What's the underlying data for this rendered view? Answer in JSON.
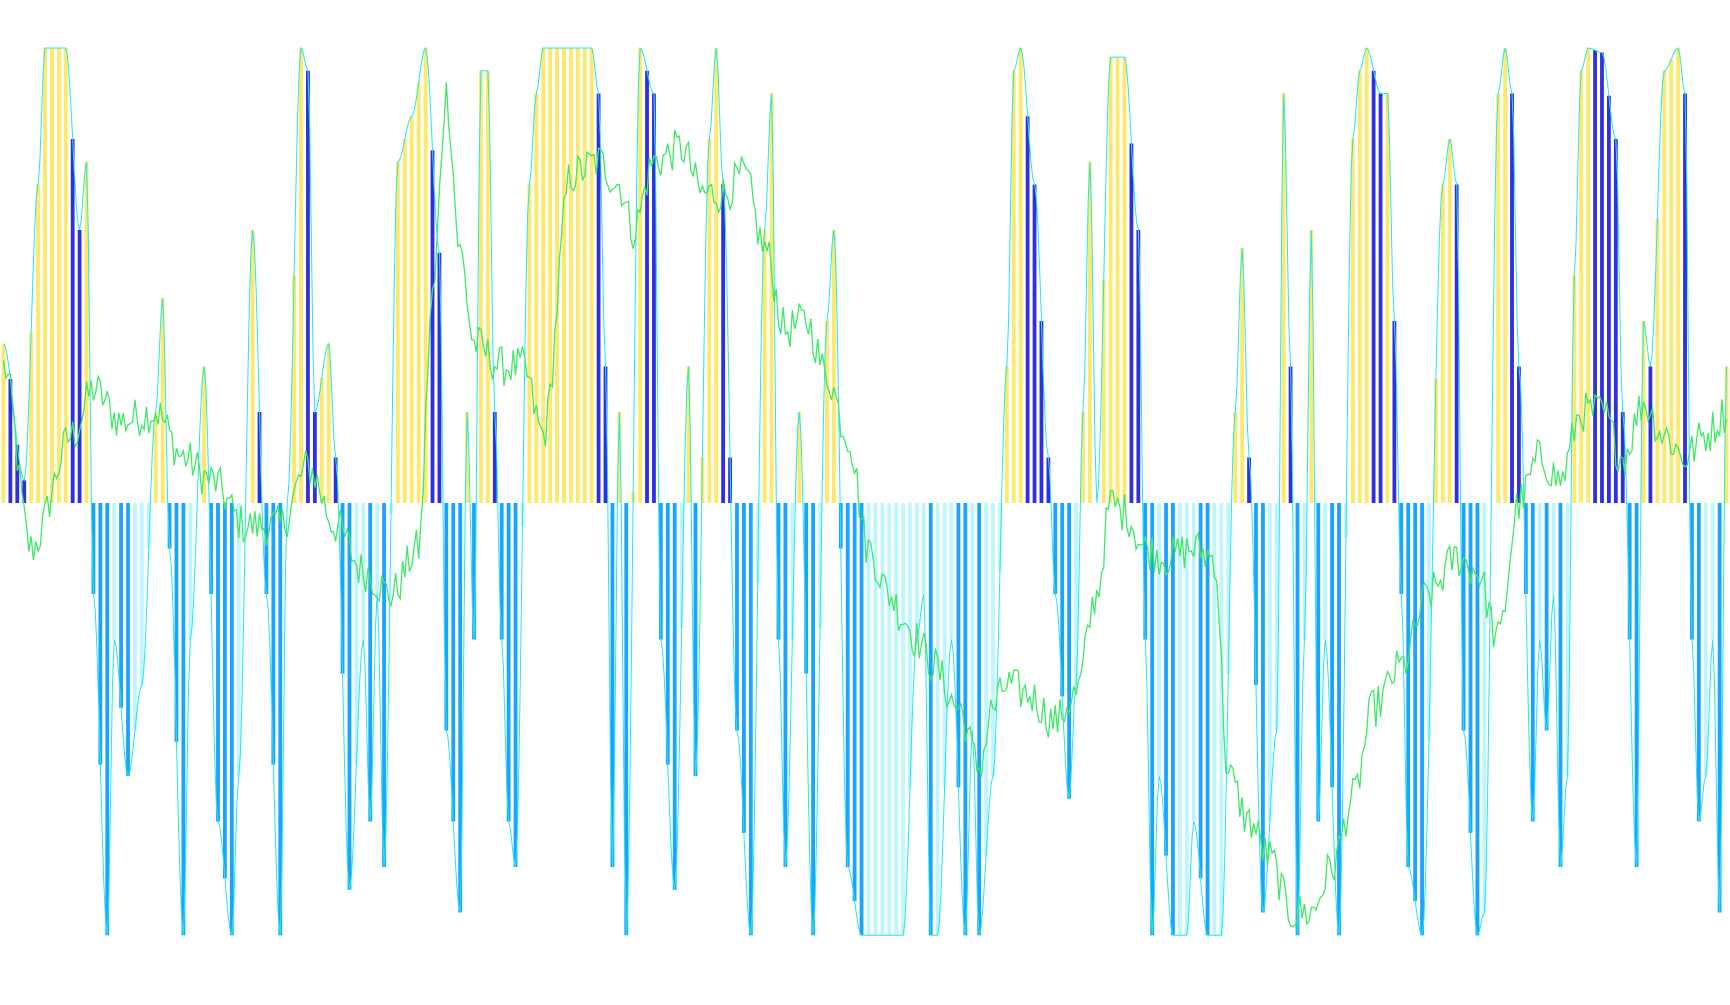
{
  "chart_data": {
    "type": "bar",
    "grid": false,
    "legend": "none",
    "ylim": [
      -1,
      1
    ],
    "n_bars": 250,
    "colors": {
      "positive_strong": "#2f2fe0",
      "positive_weak": "#ffe96a",
      "negative_strong": "#1aa3ff",
      "negative_weak": "#bdf6ff",
      "envelope": "#23e6f0",
      "price": "#3fe865"
    },
    "envelope_keypoints": [
      [
        0,
        0.35
      ],
      [
        3,
        0.05
      ],
      [
        5,
        0.7
      ],
      [
        6,
        1.0
      ],
      [
        9,
        1.0
      ],
      [
        11,
        0.6
      ],
      [
        12,
        0.75
      ],
      [
        13,
        -0.2
      ],
      [
        15,
        -0.95
      ],
      [
        16,
        -0.3
      ],
      [
        18,
        -0.6
      ],
      [
        20,
        -0.4
      ],
      [
        22,
        0.2
      ],
      [
        23,
        0.45
      ],
      [
        24,
        -0.1
      ],
      [
        26,
        -0.95
      ],
      [
        27,
        -0.3
      ],
      [
        29,
        0.3
      ],
      [
        31,
        -0.7
      ],
      [
        33,
        -0.95
      ],
      [
        34,
        -0.6
      ],
      [
        36,
        0.6
      ],
      [
        38,
        -0.2
      ],
      [
        40,
        -0.95
      ],
      [
        41,
        0.0
      ],
      [
        43,
        1.0
      ],
      [
        44,
        0.95
      ],
      [
        45,
        0.2
      ],
      [
        47,
        0.35
      ],
      [
        48,
        0.1
      ],
      [
        50,
        -0.85
      ],
      [
        52,
        -0.3
      ],
      [
        53,
        -0.7
      ],
      [
        54,
        -0.2
      ],
      [
        55,
        -0.8
      ],
      [
        57,
        0.75
      ],
      [
        59,
        0.85
      ],
      [
        61,
        1.0
      ],
      [
        63,
        0.55
      ],
      [
        64,
        -0.5
      ],
      [
        66,
        -0.9
      ],
      [
        67,
        0.2
      ],
      [
        68,
        -0.3
      ],
      [
        69,
        0.95
      ],
      [
        70,
        0.95
      ],
      [
        71,
        0.2
      ],
      [
        72,
        -0.3
      ],
      [
        73,
        -0.7
      ],
      [
        74,
        -0.8
      ],
      [
        76,
        0.7
      ],
      [
        77,
        0.9
      ],
      [
        78,
        1.0
      ],
      [
        85,
        1.0
      ],
      [
        86,
        0.9
      ],
      [
        87,
        0.3
      ],
      [
        88,
        -0.8
      ],
      [
        89,
        0.2
      ],
      [
        90,
        -0.95
      ],
      [
        92,
        1.0
      ],
      [
        94,
        0.9
      ],
      [
        95,
        -0.3
      ],
      [
        97,
        -0.85
      ],
      [
        99,
        0.3
      ],
      [
        100,
        -0.6
      ],
      [
        102,
        0.8
      ],
      [
        103,
        1.0
      ],
      [
        104,
        0.7
      ],
      [
        106,
        -0.5
      ],
      [
        108,
        -0.95
      ],
      [
        110,
        0.6
      ],
      [
        111,
        0.9
      ],
      [
        112,
        -0.3
      ],
      [
        113,
        -0.8
      ],
      [
        115,
        0.2
      ],
      [
        117,
        -0.95
      ],
      [
        119,
        0.4
      ],
      [
        120,
        0.6
      ],
      [
        122,
        -0.8
      ],
      [
        124,
        -0.95
      ],
      [
        126,
        -0.95
      ],
      [
        130,
        -0.95
      ],
      [
        132,
        -0.3
      ],
      [
        133,
        -0.2
      ],
      [
        134,
        -0.95
      ],
      [
        135,
        -0.95
      ],
      [
        137,
        -0.3
      ],
      [
        139,
        -0.95
      ],
      [
        140,
        -0.5
      ],
      [
        141,
        -0.95
      ],
      [
        143,
        -0.6
      ],
      [
        145,
        0.3
      ],
      [
        146,
        0.95
      ],
      [
        147,
        1.0
      ],
      [
        149,
        0.7
      ],
      [
        151,
        0.1
      ],
      [
        152,
        -0.2
      ],
      [
        154,
        -0.65
      ],
      [
        155,
        -0.4
      ],
      [
        156,
        0.2
      ],
      [
        157,
        0.75
      ],
      [
        158,
        0.0
      ],
      [
        160,
        0.98
      ],
      [
        162,
        0.98
      ],
      [
        164,
        0.6
      ],
      [
        165,
        -0.3
      ],
      [
        166,
        -0.95
      ],
      [
        167,
        -0.6
      ],
      [
        169,
        -0.95
      ],
      [
        171,
        -0.95
      ],
      [
        172,
        -0.7
      ],
      [
        174,
        -0.95
      ],
      [
        176,
        -0.95
      ],
      [
        178,
        0.2
      ],
      [
        179,
        0.56
      ],
      [
        180,
        0.1
      ],
      [
        182,
        -0.9
      ],
      [
        184,
        -0.5
      ],
      [
        185,
        0.9
      ],
      [
        186,
        0.3
      ],
      [
        187,
        -0.95
      ],
      [
        188,
        -0.3
      ],
      [
        189,
        0.6
      ],
      [
        190,
        -0.7
      ],
      [
        191,
        -0.3
      ],
      [
        193,
        -0.95
      ],
      [
        195,
        0.8
      ],
      [
        196,
        0.95
      ],
      [
        197,
        1.0
      ],
      [
        199,
        0.9
      ],
      [
        200,
        0.9
      ],
      [
        201,
        0.4
      ],
      [
        202,
        -0.2
      ],
      [
        203,
        -0.8
      ],
      [
        205,
        -0.95
      ],
      [
        208,
        0.7
      ],
      [
        209,
        0.8
      ],
      [
        210,
        0.7
      ],
      [
        211,
        -0.5
      ],
      [
        213,
        -0.95
      ],
      [
        214,
        -0.9
      ],
      [
        216,
        0.9
      ],
      [
        217,
        1.0
      ],
      [
        218,
        0.9
      ],
      [
        219,
        0.3
      ],
      [
        221,
        -0.7
      ],
      [
        222,
        -0.3
      ],
      [
        223,
        -0.5
      ],
      [
        224,
        -0.2
      ],
      [
        225,
        -0.8
      ],
      [
        226,
        -0.6
      ],
      [
        227,
        0.5
      ],
      [
        228,
        0.95
      ],
      [
        229,
        1.0
      ],
      [
        231,
        0.99
      ],
      [
        233,
        0.8
      ],
      [
        234,
        0.2
      ],
      [
        236,
        -0.8
      ],
      [
        237,
        0.4
      ],
      [
        238,
        0.3
      ],
      [
        240,
        0.95
      ],
      [
        242,
        1.0
      ],
      [
        243,
        0.9
      ],
      [
        244,
        -0.3
      ],
      [
        245,
        -0.7
      ],
      [
        246,
        -0.6
      ],
      [
        247,
        -0.3
      ],
      [
        248,
        -0.9
      ],
      [
        249,
        0.3
      ]
    ],
    "price_keypoints": [
      [
        0,
        0.3
      ],
      [
        4,
        -0.1
      ],
      [
        10,
        0.15
      ],
      [
        13,
        0.25
      ],
      [
        17,
        0.18
      ],
      [
        22,
        0.2
      ],
      [
        26,
        0.1
      ],
      [
        30,
        0.05
      ],
      [
        35,
        -0.05
      ],
      [
        40,
        -0.05
      ],
      [
        44,
        0.08
      ],
      [
        48,
        -0.05
      ],
      [
        52,
        -0.15
      ],
      [
        56,
        -0.2
      ],
      [
        60,
        -0.1
      ],
      [
        62,
        0.45
      ],
      [
        64,
        0.9
      ],
      [
        66,
        0.55
      ],
      [
        68,
        0.35
      ],
      [
        72,
        0.3
      ],
      [
        75,
        0.3
      ],
      [
        78,
        0.15
      ],
      [
        82,
        0.72
      ],
      [
        86,
        0.75
      ],
      [
        89,
        0.7
      ],
      [
        91,
        0.6
      ],
      [
        94,
        0.75
      ],
      [
        98,
        0.78
      ],
      [
        101,
        0.68
      ],
      [
        104,
        0.68
      ],
      [
        107,
        0.72
      ],
      [
        110,
        0.56
      ],
      [
        113,
        0.38
      ],
      [
        116,
        0.4
      ],
      [
        119,
        0.28
      ],
      [
        122,
        0.15
      ],
      [
        125,
        -0.1
      ],
      [
        128,
        -0.2
      ],
      [
        130,
        -0.25
      ],
      [
        132,
        -0.3
      ],
      [
        134,
        -0.35
      ],
      [
        138,
        -0.45
      ],
      [
        141,
        -0.58
      ],
      [
        143,
        -0.45
      ],
      [
        145,
        -0.4
      ],
      [
        148,
        -0.42
      ],
      [
        152,
        -0.48
      ],
      [
        155,
        -0.42
      ],
      [
        158,
        -0.2
      ],
      [
        160,
        0.0
      ],
      [
        162,
        -0.02
      ],
      [
        165,
        -0.1
      ],
      [
        168,
        -0.12
      ],
      [
        172,
        -0.1
      ],
      [
        175,
        -0.12
      ],
      [
        177,
        -0.6
      ],
      [
        180,
        -0.7
      ],
      [
        183,
        -0.78
      ],
      [
        186,
        -0.9
      ],
      [
        189,
        -0.9
      ],
      [
        192,
        -0.8
      ],
      [
        195,
        -0.65
      ],
      [
        198,
        -0.45
      ],
      [
        202,
        -0.36
      ],
      [
        206,
        -0.2
      ],
      [
        210,
        -0.12
      ],
      [
        213,
        -0.15
      ],
      [
        216,
        -0.3
      ],
      [
        219,
        0.0
      ],
      [
        222,
        0.1
      ],
      [
        225,
        0.05
      ],
      [
        228,
        0.2
      ],
      [
        231,
        0.2
      ],
      [
        234,
        0.1
      ],
      [
        237,
        0.22
      ],
      [
        240,
        0.15
      ],
      [
        243,
        0.1
      ],
      [
        246,
        0.15
      ],
      [
        249,
        0.2
      ]
    ]
  }
}
